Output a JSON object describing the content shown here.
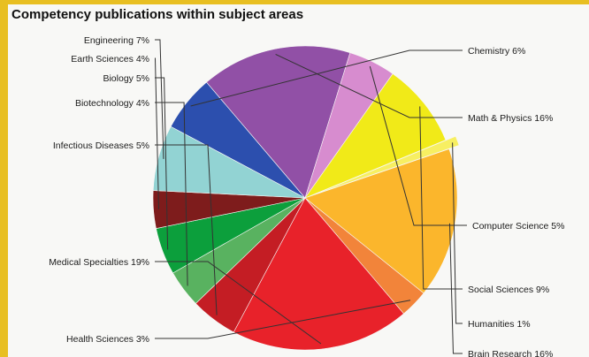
{
  "chart_data": {
    "type": "pie",
    "title": "Competency publications within subject areas",
    "series": [
      {
        "name": "Chemistry",
        "value": 6,
        "label": "Chemistry 6%",
        "color": "#2c4fae"
      },
      {
        "name": "Math & Physics",
        "value": 16,
        "label": "Math & Physics 16%",
        "color": "#9150a6"
      },
      {
        "name": "Computer Science",
        "value": 5,
        "label": "Computer Science 5%",
        "color": "#d78ccf"
      },
      {
        "name": "Social Sciences",
        "value": 9,
        "label": "Social Sciences 9%",
        "color": "#f1ea18"
      },
      {
        "name": "Humanities",
        "value": 1,
        "label": "Humanities 1%",
        "color": "#f7ef62"
      },
      {
        "name": "Brain Research",
        "value": 16,
        "label": "Brain Research 16%",
        "color": "#fbb62c"
      },
      {
        "name": "Health Sciences",
        "value": 3,
        "label": "Health Sciences 3%",
        "color": "#f2843a"
      },
      {
        "name": "Medical Specialties",
        "value": 19,
        "label": "Medical Specialties 19%",
        "color": "#e8222a"
      },
      {
        "name": "Infectious Diseases",
        "value": 5,
        "label": "Infectious Diseases 5%",
        "color": "#c41d24"
      },
      {
        "name": "Biotechnology",
        "value": 4,
        "label": "Biotechnology 4%",
        "color": "#59b260"
      },
      {
        "name": "Biology",
        "value": 5,
        "label": "Biology 5%",
        "color": "#0c9f3c"
      },
      {
        "name": "Earth Sciences",
        "value": 4,
        "label": "Earth Sciences 4%",
        "color": "#7e1c1c"
      },
      {
        "name": "Engineering",
        "value": 7,
        "label": "Engineering 7%",
        "color": "#92d3d3"
      }
    ]
  }
}
